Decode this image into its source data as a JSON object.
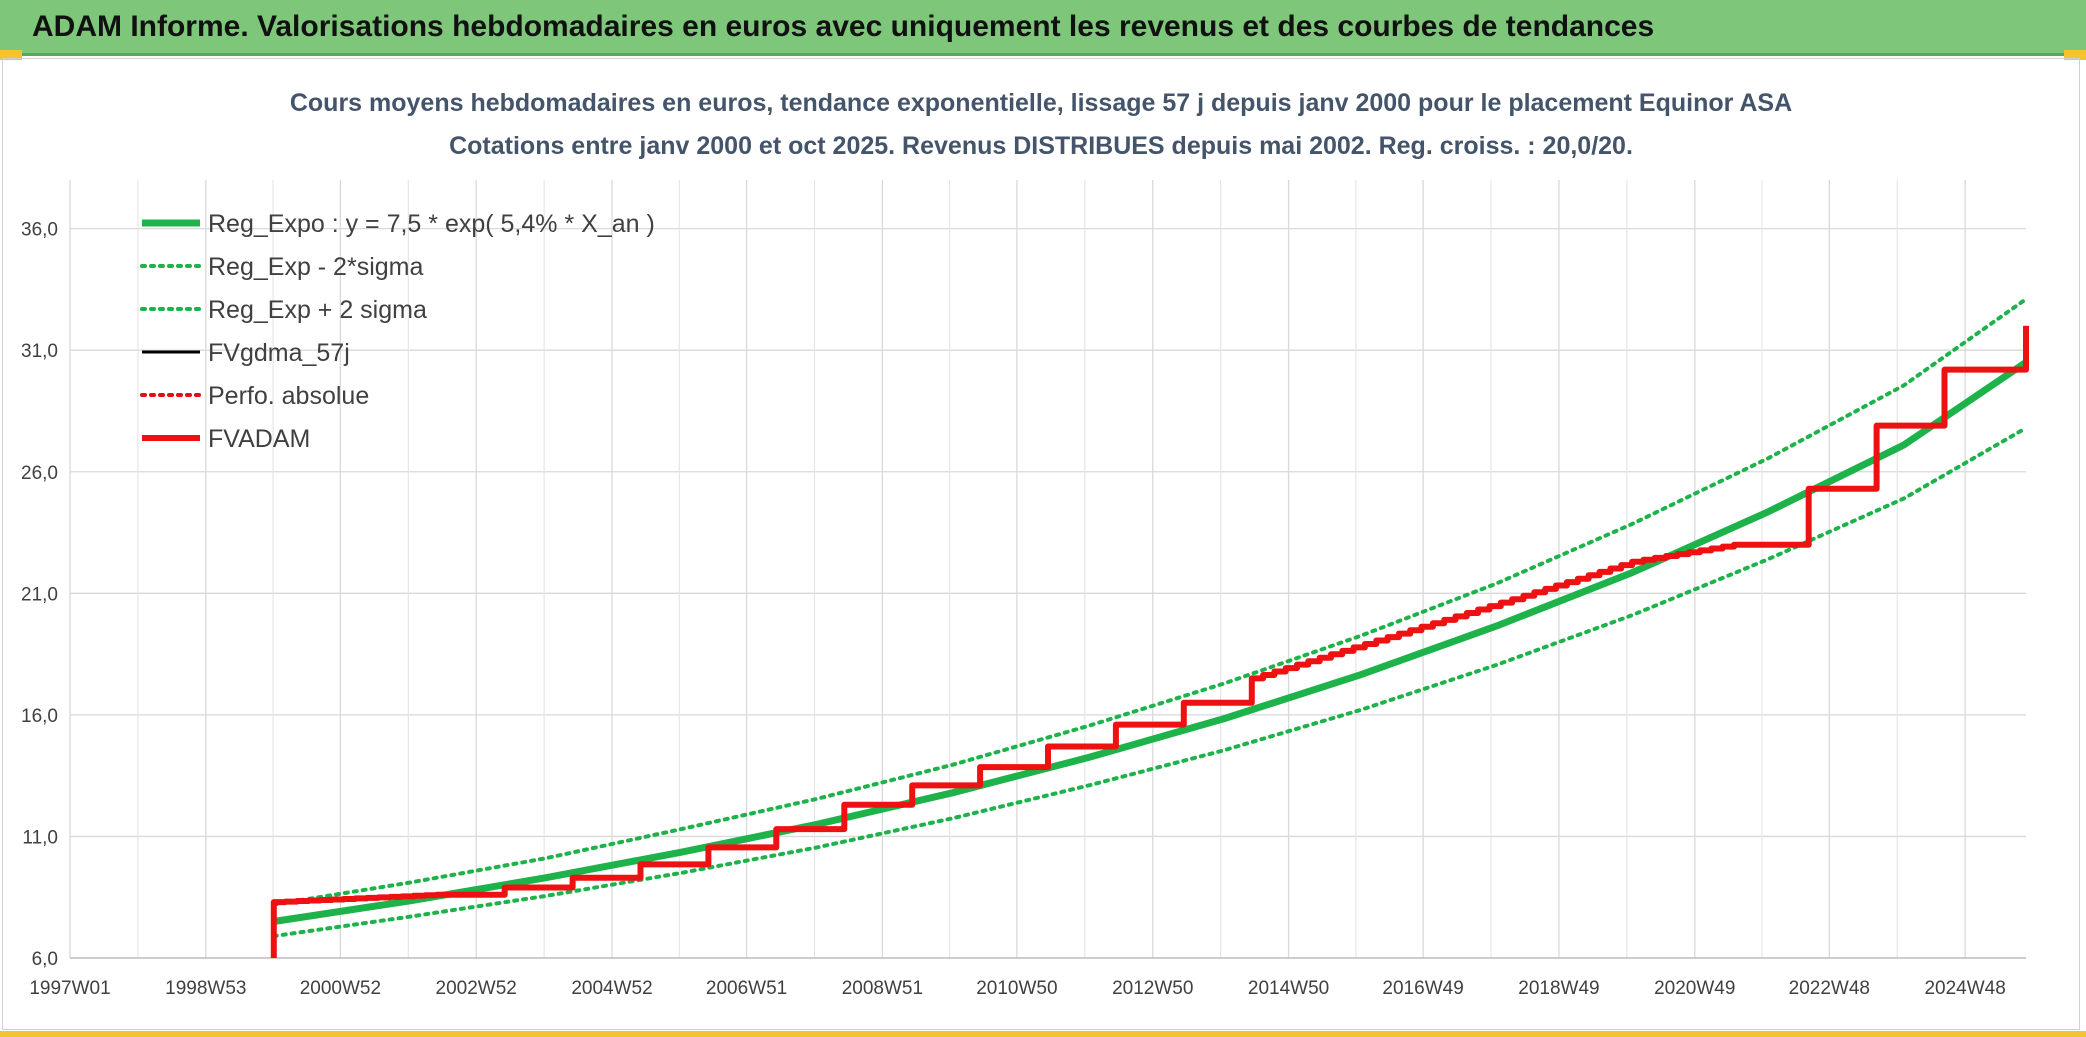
{
  "header": {
    "title": "ADAM Informe. Valorisations hebdomadaires en euros avec uniquement les revenus et des courbes de tendances"
  },
  "chart_data": {
    "type": "line",
    "title": "Cours moyens hebdomadaires en euros, tendance exponentielle, lissage 57 j depuis janv 2000 pour le placement Equinor ASA",
    "subtitle": "Cotations entre janv 2000 et oct 2025. Revenus DISTRIBUES depuis mai 2002. Reg. croiss. : 20,0/20.",
    "xlabel": "",
    "ylabel": "",
    "x_tick_labels": [
      "1997W01",
      "1998W53",
      "2000W52",
      "2002W52",
      "2004W52",
      "2006W51",
      "2008W51",
      "2010W50",
      "2012W50",
      "2014W50",
      "2016W49",
      "2018W49",
      "2020W49",
      "2022W48",
      "2024W48"
    ],
    "x_range": [
      1997.0,
      2025.8
    ],
    "y_tick_labels": [
      "6,0",
      "11,0",
      "16,0",
      "21,0",
      "26,0",
      "31,0",
      "36,0"
    ],
    "ylim": [
      6,
      38
    ],
    "grid": true,
    "legend_position": "top-left",
    "colors": {
      "reg": "#1db34a",
      "fvgdma": "#000000",
      "perfo": "#e01010",
      "fvadam": "#ee1111"
    },
    "series": [
      {
        "name": "Reg_Expo : y = 7,5 * exp( 5,4% *  X_an )",
        "style": "solid-thick",
        "color": "#1db34a",
        "x": [
          2000.0,
          2002.0,
          2004.0,
          2006.0,
          2008.0,
          2010.0,
          2012.0,
          2014.0,
          2016.0,
          2018.0,
          2020.0,
          2022.0,
          2024.0,
          2025.8
        ],
        "y": [
          7.5,
          8.35,
          9.3,
          10.35,
          11.5,
          12.8,
          14.25,
          15.85,
          17.65,
          19.65,
          21.85,
          24.35,
          27.1,
          30.5
        ]
      },
      {
        "name": "Reg_Exp - 2*sigma",
        "style": "dotted",
        "color": "#1db34a",
        "x": [
          2000.0,
          2002.0,
          2004.0,
          2006.0,
          2008.0,
          2010.0,
          2012.0,
          2014.0,
          2016.0,
          2018.0,
          2020.0,
          2022.0,
          2024.0,
          2025.8
        ],
        "y": [
          6.9,
          7.7,
          8.55,
          9.5,
          10.55,
          11.75,
          13.1,
          14.55,
          16.2,
          18.05,
          20.1,
          22.4,
          24.9,
          27.8
        ]
      },
      {
        "name": "Reg_Exp + 2 sigma",
        "style": "dotted",
        "color": "#1db34a",
        "x": [
          2000.0,
          2002.0,
          2004.0,
          2006.0,
          2008.0,
          2010.0,
          2012.0,
          2014.0,
          2016.0,
          2018.0,
          2020.0,
          2022.0,
          2024.0,
          2025.8
        ],
        "y": [
          8.2,
          9.1,
          10.1,
          11.3,
          12.55,
          13.95,
          15.55,
          17.3,
          19.25,
          21.4,
          23.85,
          26.55,
          29.55,
          33.1
        ]
      },
      {
        "name": "FVgdma_57j",
        "style": "solid",
        "color": "#000000",
        "x": [
          2000.0,
          2002.4,
          2003.4,
          2004.4,
          2005.4,
          2006.4,
          2007.4,
          2008.4,
          2009.4,
          2010.4,
          2011.4,
          2012.4,
          2013.4,
          2014.4,
          2016.4,
          2018.4,
          2020.0,
          2021.5,
          2022.6,
          2023.6,
          2024.6,
          2025.8
        ],
        "y": [
          8.3,
          8.6,
          8.9,
          9.3,
          9.85,
          10.55,
          11.3,
          12.3,
          13.1,
          13.85,
          14.7,
          15.6,
          16.5,
          17.5,
          19.2,
          20.9,
          22.3,
          23.0,
          25.3,
          27.9,
          30.2,
          32.0
        ]
      },
      {
        "name": "Perfo. absolue",
        "style": "dotted",
        "color": "#e01010",
        "x": [
          2000.0,
          2002.4,
          2003.4,
          2004.4,
          2005.4,
          2006.4,
          2007.4,
          2008.4,
          2009.4,
          2010.4,
          2011.4,
          2012.4,
          2013.4,
          2014.4,
          2016.4,
          2018.4,
          2020.0,
          2021.5,
          2022.6,
          2023.6,
          2024.6,
          2025.8
        ],
        "y": [
          8.3,
          8.6,
          8.9,
          9.3,
          9.85,
          10.55,
          11.3,
          12.3,
          13.1,
          13.85,
          14.7,
          15.6,
          16.5,
          17.5,
          19.2,
          20.9,
          22.3,
          23.0,
          25.3,
          27.9,
          30.2,
          32.0
        ]
      },
      {
        "name": "FVADAM",
        "style": "steps-thick",
        "color": "#ee1111",
        "x": [
          2000.0,
          2002.4,
          2003.4,
          2004.4,
          2005.4,
          2006.4,
          2007.4,
          2008.4,
          2009.4,
          2010.4,
          2011.4,
          2012.4,
          2013.4,
          2014.4,
          2016.4,
          2018.4,
          2020.0,
          2021.5,
          2022.6,
          2023.6,
          2024.6,
          2025.8
        ],
        "y": [
          8.3,
          8.6,
          8.9,
          9.3,
          9.85,
          10.55,
          11.3,
          12.3,
          13.1,
          13.85,
          14.7,
          15.6,
          16.5,
          17.5,
          19.2,
          20.9,
          22.3,
          23.0,
          25.3,
          27.9,
          30.2,
          32.0
        ]
      }
    ]
  }
}
